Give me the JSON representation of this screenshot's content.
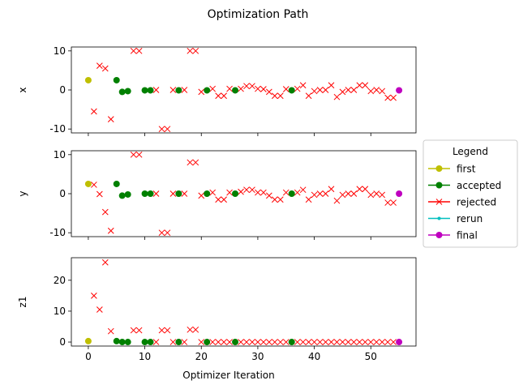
{
  "chart_data": {
    "type": "scatter",
    "title": "Optimization Path",
    "xlabel": "Optimizer Iteration",
    "xlim": [
      -3,
      58
    ],
    "xticks": [
      0,
      10,
      20,
      30,
      40,
      50
    ],
    "legend": {
      "title": "Legend",
      "placement": "right",
      "entries": [
        {
          "name": "first",
          "color": "#bfbf00",
          "marker": "circle"
        },
        {
          "name": "accepted",
          "color": "#008000",
          "marker": "circle"
        },
        {
          "name": "rejected",
          "color": "#ff0000",
          "marker": "x"
        },
        {
          "name": "rerun",
          "color": "#00bfbf",
          "marker": "dot"
        },
        {
          "name": "final",
          "color": "#bf00bf",
          "marker": "circle"
        }
      ]
    },
    "panels": [
      {
        "ylabel": "x",
        "ylim": [
          -11,
          11
        ],
        "yticks": [
          -10,
          0,
          10
        ],
        "first": [
          [
            0,
            2.5
          ]
        ],
        "accepted": [
          [
            5,
            2.5
          ],
          [
            6,
            -0.5
          ],
          [
            7,
            -0.3
          ],
          [
            10,
            -0.1
          ],
          [
            11,
            -0.1
          ],
          [
            16,
            -0.1
          ],
          [
            21,
            -0.1
          ],
          [
            26,
            -0.1
          ],
          [
            36,
            -0.1
          ]
        ],
        "rejected": [
          [
            1,
            -5.5
          ],
          [
            2,
            6.2
          ],
          [
            3,
            5.5
          ],
          [
            4,
            -7.5
          ],
          [
            8,
            10
          ],
          [
            9,
            10
          ],
          [
            12,
            0
          ],
          [
            13,
            -10
          ],
          [
            14,
            -10
          ],
          [
            15,
            0
          ],
          [
            17,
            0
          ],
          [
            18,
            10
          ],
          [
            19,
            10
          ],
          [
            20,
            -0.5
          ],
          [
            22,
            0.3
          ],
          [
            23,
            -1.5
          ],
          [
            24,
            -1.5
          ],
          [
            25,
            0.3
          ],
          [
            27,
            0.3
          ],
          [
            28,
            1
          ],
          [
            29,
            1
          ],
          [
            30,
            0.3
          ],
          [
            31,
            0.2
          ],
          [
            32,
            -0.5
          ],
          [
            33,
            -1.5
          ],
          [
            34,
            -1.5
          ],
          [
            35,
            0.2
          ],
          [
            37,
            0.3
          ],
          [
            38,
            1.2
          ],
          [
            39,
            -1.5
          ],
          [
            40,
            -0.3
          ],
          [
            41,
            0
          ],
          [
            42,
            0
          ],
          [
            43,
            1.2
          ],
          [
            44,
            -1.8
          ],
          [
            45,
            -0.5
          ],
          [
            46,
            0
          ],
          [
            47,
            0
          ],
          [
            48,
            1.2
          ],
          [
            49,
            1.2
          ],
          [
            50,
            -0.3
          ],
          [
            51,
            0
          ],
          [
            52,
            -0.3
          ],
          [
            53,
            -2
          ],
          [
            54,
            -2
          ]
        ],
        "final": [
          [
            55,
            -0.1
          ]
        ]
      },
      {
        "ylabel": "y",
        "ylim": [
          -11,
          11
        ],
        "yticks": [
          -10,
          0,
          10
        ],
        "first": [
          [
            0,
            2.5
          ]
        ],
        "accepted": [
          [
            5,
            2.5
          ],
          [
            6,
            -0.5
          ],
          [
            7,
            -0.2
          ],
          [
            10,
            0
          ],
          [
            11,
            0
          ],
          [
            16,
            0
          ],
          [
            21,
            0
          ],
          [
            26,
            0
          ],
          [
            36,
            0
          ]
        ],
        "rejected": [
          [
            1,
            2.3
          ],
          [
            2,
            -0.1
          ],
          [
            3,
            -4.7
          ],
          [
            4,
            -9.5
          ],
          [
            8,
            10
          ],
          [
            9,
            10
          ],
          [
            12,
            0
          ],
          [
            13,
            -10
          ],
          [
            14,
            -10
          ],
          [
            15,
            0
          ],
          [
            17,
            0
          ],
          [
            18,
            8
          ],
          [
            19,
            8
          ],
          [
            20,
            -0.5
          ],
          [
            22,
            0.3
          ],
          [
            23,
            -1.5
          ],
          [
            24,
            -1.5
          ],
          [
            25,
            0.3
          ],
          [
            27,
            0.5
          ],
          [
            28,
            1
          ],
          [
            29,
            1
          ],
          [
            30,
            0.3
          ],
          [
            31,
            0.3
          ],
          [
            32,
            -0.5
          ],
          [
            33,
            -1.5
          ],
          [
            34,
            -1.5
          ],
          [
            35,
            0.3
          ],
          [
            37,
            0.3
          ],
          [
            38,
            1
          ],
          [
            39,
            -1.5
          ],
          [
            40,
            -0.3
          ],
          [
            41,
            0
          ],
          [
            42,
            0
          ],
          [
            43,
            1.2
          ],
          [
            44,
            -1.8
          ],
          [
            45,
            -0.3
          ],
          [
            46,
            0
          ],
          [
            47,
            0
          ],
          [
            48,
            1.2
          ],
          [
            49,
            1.2
          ],
          [
            50,
            -0.3
          ],
          [
            51,
            0
          ],
          [
            52,
            -0.3
          ],
          [
            53,
            -2.3
          ],
          [
            54,
            -2.3
          ]
        ],
        "final": [
          [
            55,
            0
          ]
        ]
      },
      {
        "ylabel": "z1",
        "ylim": [
          -1.3,
          27.3
        ],
        "yticks": [
          0,
          10,
          20
        ],
        "first": [
          [
            0,
            0.3
          ]
        ],
        "accepted": [
          [
            5,
            0.3
          ],
          [
            6,
            0
          ],
          [
            7,
            0
          ],
          [
            10,
            0
          ],
          [
            11,
            0
          ],
          [
            16,
            0
          ],
          [
            21,
            0
          ],
          [
            26,
            0
          ],
          [
            36,
            0
          ]
        ],
        "rejected": [
          [
            1,
            15
          ],
          [
            2,
            10.5
          ],
          [
            3,
            25.8
          ],
          [
            4,
            3.5
          ],
          [
            8,
            3.8
          ],
          [
            9,
            3.8
          ],
          [
            12,
            0
          ],
          [
            13,
            3.8
          ],
          [
            14,
            3.8
          ],
          [
            15,
            0
          ],
          [
            17,
            0
          ],
          [
            18,
            4
          ],
          [
            19,
            4
          ],
          [
            20,
            0
          ],
          [
            22,
            0
          ],
          [
            23,
            0
          ],
          [
            24,
            0
          ],
          [
            25,
            0
          ],
          [
            27,
            0
          ],
          [
            28,
            0
          ],
          [
            29,
            0
          ],
          [
            30,
            0
          ],
          [
            31,
            0
          ],
          [
            32,
            0
          ],
          [
            33,
            0
          ],
          [
            34,
            0
          ],
          [
            35,
            0
          ],
          [
            37,
            0
          ],
          [
            38,
            0
          ],
          [
            39,
            0
          ],
          [
            40,
            0
          ],
          [
            41,
            0
          ],
          [
            42,
            0
          ],
          [
            43,
            0
          ],
          [
            44,
            0
          ],
          [
            45,
            0
          ],
          [
            46,
            0
          ],
          [
            47,
            0
          ],
          [
            48,
            0
          ],
          [
            49,
            0
          ],
          [
            50,
            0
          ],
          [
            51,
            0
          ],
          [
            52,
            0
          ],
          [
            53,
            0
          ],
          [
            54,
            0
          ]
        ],
        "final": [
          [
            55,
            0
          ]
        ]
      }
    ]
  }
}
